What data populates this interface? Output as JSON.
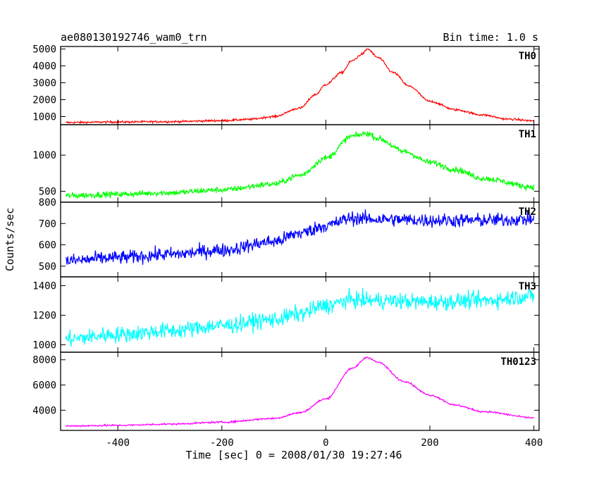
{
  "header": {
    "title": "ae080130192746_wam0_trn",
    "bin_time": "Bin time: 1.0 s"
  },
  "chart_data": {
    "type": "line",
    "xlabel": "Time [sec] 0 = 2008/01/30 19:27:46",
    "ylabel": "Counts/sec",
    "xlim": [
      -510,
      410
    ],
    "x_ticks": [
      -400,
      -200,
      0,
      200,
      400
    ],
    "panels": [
      {
        "name": "TH0",
        "color": "#ff0000",
        "ylim": [
          520,
          5150
        ],
        "y_ticks": [
          1000,
          2000,
          3000,
          4000,
          5000
        ],
        "noise": 60,
        "x": [
          -500,
          -400,
          -300,
          -200,
          -150,
          -100,
          -50,
          -20,
          0,
          30,
          50,
          70,
          80,
          100,
          130,
          160,
          200,
          250,
          300,
          350,
          400
        ],
        "values": [
          650,
          680,
          700,
          760,
          830,
          1000,
          1500,
          2300,
          2900,
          3600,
          4300,
          4700,
          5000,
          4500,
          3600,
          2800,
          1900,
          1400,
          1100,
          850,
          750
        ]
      },
      {
        "name": "TH1",
        "color": "#00ff00",
        "ylim": [
          350,
          1420
        ],
        "y_ticks": [
          500,
          1000
        ],
        "noise": 40,
        "x": [
          -500,
          -400,
          -300,
          -200,
          -100,
          -50,
          0,
          50,
          80,
          100,
          150,
          200,
          250,
          300,
          400
        ],
        "values": [
          440,
          460,
          480,
          520,
          600,
          720,
          960,
          1260,
          1300,
          1230,
          1050,
          900,
          800,
          680,
          560
        ]
      },
      {
        "name": "TH2",
        "color": "#0000ff",
        "ylim": [
          450,
          800
        ],
        "y_ticks": [
          500,
          600,
          700,
          800
        ],
        "noise": 32,
        "x": [
          -500,
          -400,
          -300,
          -200,
          -100,
          -50,
          0,
          50,
          100,
          200,
          300,
          400
        ],
        "values": [
          525,
          540,
          555,
          575,
          615,
          655,
          690,
          725,
          720,
          715,
          715,
          720
        ]
      },
      {
        "name": "TH3",
        "color": "#00ffff",
        "ylim": [
          950,
          1460
        ],
        "y_ticks": [
          1000,
          1200,
          1400
        ],
        "noise": 55,
        "x": [
          -500,
          -400,
          -300,
          -200,
          -100,
          -50,
          0,
          50,
          100,
          200,
          300,
          400
        ],
        "values": [
          1040,
          1070,
          1095,
          1130,
          1170,
          1210,
          1265,
          1305,
          1300,
          1290,
          1300,
          1330
        ]
      },
      {
        "name": "TH0123",
        "color": "#ff00ff",
        "ylim": [
          2400,
          8600
        ],
        "y_ticks": [
          4000,
          6000,
          8000
        ],
        "noise": 70,
        "x": [
          -500,
          -400,
          -300,
          -200,
          -100,
          -50,
          0,
          50,
          80,
          100,
          150,
          200,
          250,
          300,
          400
        ],
        "values": [
          2750,
          2800,
          2900,
          3050,
          3350,
          3800,
          4900,
          7300,
          8200,
          7800,
          6300,
          5200,
          4400,
          3900,
          3400
        ]
      }
    ]
  }
}
